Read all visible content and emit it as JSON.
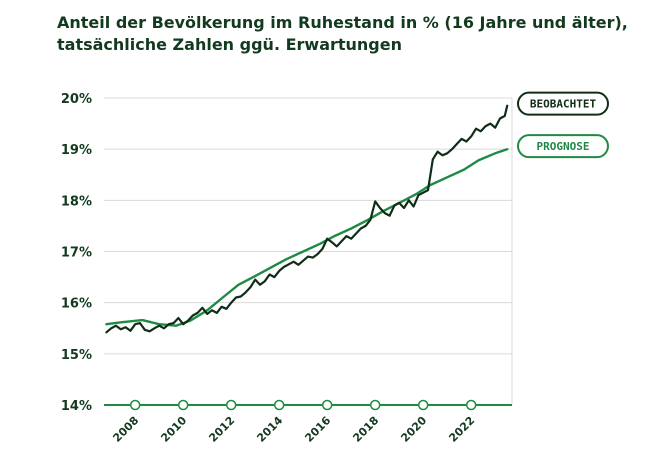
{
  "chart_data": {
    "type": "line",
    "title_line1": "Anteil der Bevölkerung im Ruhestand in % (16 Jahre und älter),",
    "title_line2": "tatsächliche Zahlen ggü. Erwartungen",
    "xlabel": "",
    "ylabel": "",
    "xlim": [
      2006.7,
      2023.7
    ],
    "ylim": [
      14,
      20
    ],
    "y_ticks": [
      "14%",
      "15%",
      "16%",
      "17%",
      "18%",
      "19%",
      "20%"
    ],
    "y_tick_values": [
      14,
      15,
      16,
      17,
      18,
      19,
      20
    ],
    "x_ticks": [
      "2008",
      "2010",
      "2012",
      "2014",
      "2016",
      "2018",
      "2020",
      "2022"
    ],
    "x_tick_values": [
      2008,
      2010,
      2012,
      2014,
      2016,
      2018,
      2020,
      2022
    ],
    "grid": true,
    "legend_position": "right",
    "colors": {
      "observed": "#0f2d17",
      "forecast": "#1f8a45",
      "grid": "#d9d9d9"
    },
    "series": [
      {
        "name": "BEOBACHTET",
        "x": [
          2006.8,
          2007.0,
          2007.2,
          2007.4,
          2007.6,
          2007.8,
          2008.0,
          2008.2,
          2008.4,
          2008.6,
          2008.8,
          2009.0,
          2009.2,
          2009.4,
          2009.6,
          2009.8,
          2010.0,
          2010.2,
          2010.4,
          2010.6,
          2010.8,
          2011.0,
          2011.2,
          2011.4,
          2011.6,
          2011.8,
          2012.0,
          2012.2,
          2012.4,
          2012.6,
          2012.8,
          2013.0,
          2013.2,
          2013.4,
          2013.6,
          2013.8,
          2014.0,
          2014.2,
          2014.4,
          2014.6,
          2014.8,
          2015.0,
          2015.2,
          2015.4,
          2015.6,
          2015.8,
          2016.0,
          2016.2,
          2016.4,
          2016.6,
          2016.8,
          2017.0,
          2017.2,
          2017.4,
          2017.6,
          2017.8,
          2018.0,
          2018.2,
          2018.4,
          2018.6,
          2018.8,
          2019.0,
          2019.2,
          2019.4,
          2019.6,
          2019.8,
          2020.0,
          2020.2,
          2020.4,
          2020.6,
          2020.8,
          2021.0,
          2021.2,
          2021.4,
          2021.6,
          2021.8,
          2022.0,
          2022.2,
          2022.4,
          2022.6,
          2022.8,
          2023.0,
          2023.2,
          2023.4,
          2023.5
        ],
        "values": [
          15.42,
          15.5,
          15.55,
          15.48,
          15.52,
          15.45,
          15.58,
          15.6,
          15.47,
          15.44,
          15.5,
          15.55,
          15.5,
          15.58,
          15.6,
          15.7,
          15.58,
          15.65,
          15.75,
          15.8,
          15.9,
          15.78,
          15.85,
          15.8,
          15.92,
          15.88,
          16.0,
          16.1,
          16.12,
          16.2,
          16.3,
          16.45,
          16.35,
          16.42,
          16.55,
          16.5,
          16.62,
          16.7,
          16.75,
          16.8,
          16.74,
          16.82,
          16.9,
          16.88,
          16.95,
          17.05,
          17.25,
          17.18,
          17.1,
          17.2,
          17.3,
          17.25,
          17.35,
          17.45,
          17.5,
          17.62,
          17.98,
          17.85,
          17.75,
          17.7,
          17.9,
          17.95,
          17.85,
          18.0,
          17.88,
          18.1,
          18.15,
          18.2,
          18.8,
          18.95,
          18.88,
          18.92,
          19.0,
          19.1,
          19.2,
          19.15,
          19.25,
          19.4,
          19.35,
          19.45,
          19.5,
          19.42,
          19.6,
          19.65,
          19.85
        ]
      },
      {
        "name": "PROGNOSE",
        "x": [
          2006.8,
          2007.5,
          2008.3,
          2009.0,
          2009.7,
          2010.3,
          2011.0,
          2011.7,
          2012.3,
          2013.0,
          2013.7,
          2014.3,
          2015.0,
          2015.7,
          2016.3,
          2017.0,
          2017.7,
          2018.3,
          2019.0,
          2019.7,
          2020.3,
          2021.0,
          2021.7,
          2022.3,
          2023.0,
          2023.5
        ],
        "values": [
          15.58,
          15.62,
          15.66,
          15.58,
          15.55,
          15.65,
          15.85,
          16.12,
          16.35,
          16.52,
          16.7,
          16.85,
          17.0,
          17.15,
          17.3,
          17.45,
          17.62,
          17.78,
          17.95,
          18.12,
          18.3,
          18.45,
          18.6,
          18.78,
          18.92,
          19.0
        ]
      }
    ]
  }
}
